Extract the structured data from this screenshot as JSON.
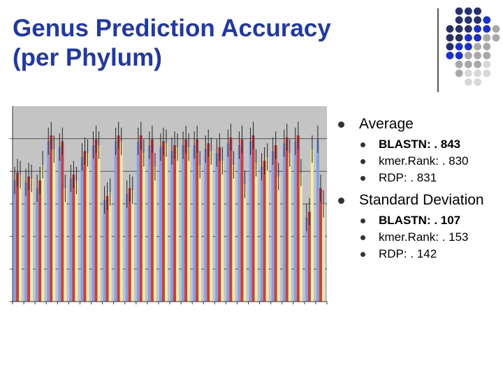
{
  "slide": {
    "title_line1": "Genus Prediction Accuracy",
    "title_line2": "(per Phylum)"
  },
  "bullets": {
    "average": "Average",
    "avg_blastn": "BLASTN: . 843",
    "avg_kmer": "kmer.Rank: . 830",
    "avg_rdp": "RDP: . 831",
    "stddev": "Standard Deviation",
    "sd_blastn": "BLASTN: . 107",
    "sd_kmer": "kmer.Rank: . 153",
    "sd_rdp": "RDP: . 142"
  },
  "colors": {
    "title": "#1f39a8",
    "dot_blue": "#1a2fd0",
    "dot_navy": "#28306c",
    "dot_gray": "#a8a8a8",
    "dot_light": "#d8d8d8",
    "plot_bg": "#c4c4c4",
    "series_blue": "#7aa4e8",
    "series_red": "#d03c40",
    "series_yellow": "#f6eba0"
  },
  "chart_data": {
    "type": "bar",
    "title": "",
    "xlabel": "",
    "ylabel": "",
    "ylim": [
      0,
      1
    ],
    "grid": true,
    "series": [
      {
        "color": "series_blue",
        "values": [
          0.62,
          0.61,
          0.58,
          0.82,
          0.79,
          0.63,
          0.74,
          0.8,
          0.52,
          0.82,
          0.55,
          0.82,
          0.8,
          0.79,
          0.77,
          0.8,
          0.8,
          0.78,
          0.76,
          0.81,
          0.8,
          0.82,
          0.69,
          0.77,
          0.81,
          0.82,
          0.43,
          0.83
        ]
      },
      {
        "color": "series_red",
        "values": [
          0.66,
          0.64,
          0.62,
          0.85,
          0.82,
          0.65,
          0.77,
          0.83,
          0.54,
          0.85,
          0.58,
          0.85,
          0.83,
          0.82,
          0.8,
          0.83,
          0.83,
          0.81,
          0.79,
          0.84,
          0.83,
          0.85,
          0.72,
          0.8,
          0.84,
          0.85,
          0.46,
          0.58
        ]
      },
      {
        "color": "series_yellow",
        "values": [
          0.65,
          0.63,
          0.7,
          0.78,
          0.58,
          0.62,
          0.76,
          0.8,
          0.56,
          0.82,
          0.57,
          0.76,
          0.69,
          0.81,
          0.79,
          0.79,
          0.7,
          0.77,
          0.72,
          0.7,
          0.6,
          0.71,
          0.74,
          0.64,
          0.76,
          0.66,
          0.78,
          0.5
        ]
      }
    ]
  }
}
